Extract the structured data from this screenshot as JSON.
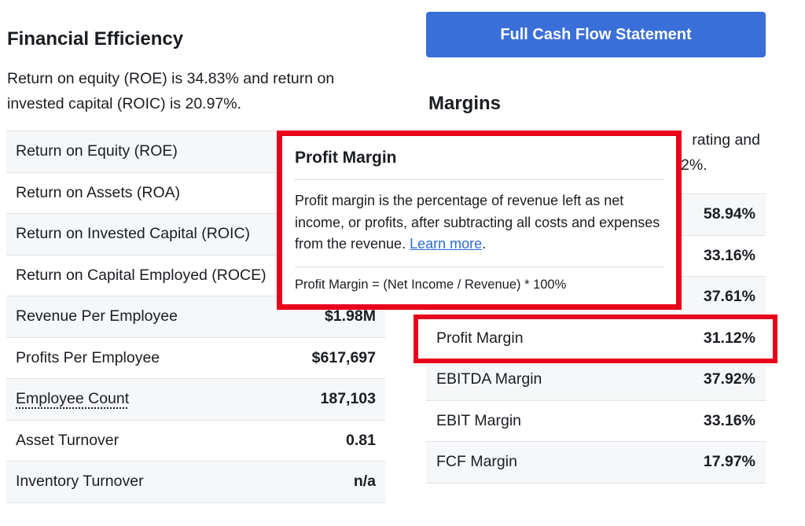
{
  "financial_efficiency": {
    "title": "Financial Efficiency",
    "description": "Return on equity (ROE) is 34.83% and return on invested capital (ROIC) is 20.97%.",
    "rows": [
      {
        "label": "Return on Equity (ROE)",
        "value": ""
      },
      {
        "label": "Return on Assets (ROA)",
        "value": ""
      },
      {
        "label": "Return on Invested Capital (ROIC)",
        "value": ""
      },
      {
        "label": "Return on Capital Employed (ROCE)",
        "value": ""
      },
      {
        "label": "Revenue Per Employee",
        "value": "$1.98M"
      },
      {
        "label": "Profits Per Employee",
        "value": "$617,697"
      },
      {
        "label": "Employee Count",
        "value": "187,103"
      },
      {
        "label": "Asset Turnover",
        "value": "0.81"
      },
      {
        "label": "Inventory Turnover",
        "value": "n/a"
      }
    ]
  },
  "cash_flow_button": {
    "label": "Full Cash Flow Statement"
  },
  "margins": {
    "title": "Margins",
    "description_line1": "rating and",
    "description_line2": "2%.",
    "rows": [
      {
        "label": "",
        "value": "58.94%"
      },
      {
        "label": "",
        "value": "33.16%"
      },
      {
        "label": "",
        "value": "37.61%"
      },
      {
        "label": "Profit Margin",
        "value": "31.12%"
      },
      {
        "label": "EBITDA Margin",
        "value": "37.92%"
      },
      {
        "label": "EBIT Margin",
        "value": "33.16%"
      },
      {
        "label": "FCF Margin",
        "value": "17.97%"
      }
    ]
  },
  "tooltip": {
    "title": "Profit Margin",
    "body": "Profit margin is the percentage of revenue left as net income, or profits, after subtracting all costs and expenses from the revenue.",
    "link_text": "Learn more",
    "formula": "Profit Margin = (Net Income / Revenue) * 100%"
  },
  "colors": {
    "accent_button": "#3a6fd8",
    "highlight_red": "#e8001c",
    "link_blue": "#2a6cd6",
    "row_stripe": "#f6f7f8"
  }
}
